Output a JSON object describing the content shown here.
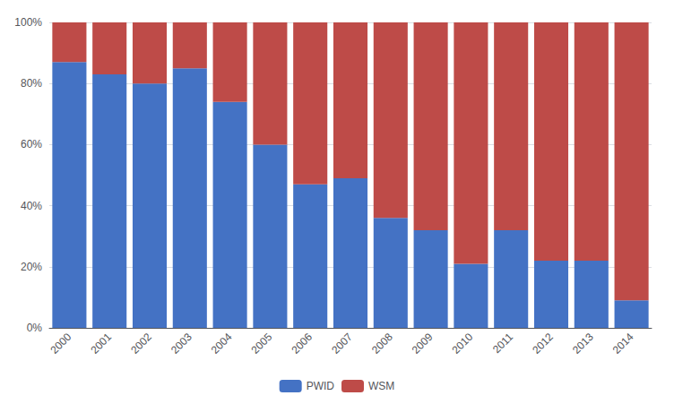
{
  "chart_data": {
    "type": "bar",
    "categories": [
      "2000",
      "2001",
      "2002",
      "2003",
      "2004",
      "2005",
      "2006",
      "2007",
      "2008",
      "2009",
      "2010",
      "2011",
      "2012",
      "2013",
      "2014"
    ],
    "series": [
      {
        "name": "PWID",
        "color": "#4472C4",
        "values": [
          87,
          83,
          80,
          85,
          74,
          60,
          47,
          49,
          36,
          32,
          21,
          32,
          22,
          22,
          9
        ]
      },
      {
        "name": "WSM",
        "color": "#BE4B48",
        "values": [
          13,
          17,
          20,
          15,
          26,
          40,
          53,
          51,
          64,
          68,
          79,
          68,
          78,
          78,
          91
        ]
      }
    ],
    "stacked": true,
    "ylim": [
      0,
      100
    ],
    "yticks": [
      {
        "value": 0,
        "label": "0%"
      },
      {
        "value": 20,
        "label": "20%"
      },
      {
        "value": 40,
        "label": "40%"
      },
      {
        "value": 60,
        "label": "60%"
      },
      {
        "value": 80,
        "label": "80%"
      },
      {
        "value": 100,
        "label": "100%"
      }
    ],
    "grid": true,
    "legend": "bottom"
  }
}
